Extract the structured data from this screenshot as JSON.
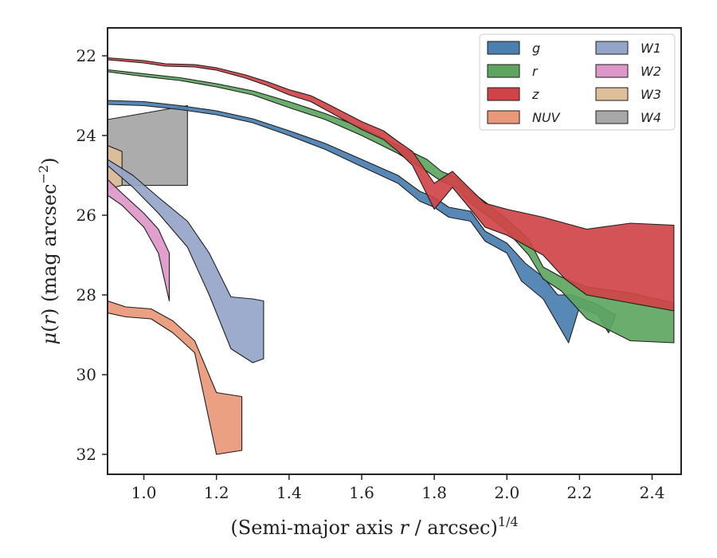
{
  "chart_data": {
    "type": "area",
    "xlabel": "(Semi-major axis r / arcsec)^1/4",
    "xlabel_parts": {
      "prefix": "(Semi-major axis ",
      "var": "r",
      "suffix": " / arcsec)",
      "exponent": "1/4"
    },
    "ylabel": "μ(r) (mag arcsec^−2)",
    "ylabel_parts": {
      "mu": "μ",
      "open": "(",
      "var": "r",
      "close": ")",
      "rest": " (mag arcsec",
      "exponent": "−2",
      "end": ")"
    },
    "xlim": [
      0.9,
      2.48
    ],
    "ylim": [
      32.5,
      21.3
    ],
    "y_inverted": true,
    "xticks": [
      "1.0",
      "1.2",
      "1.4",
      "1.6",
      "1.8",
      "2.0",
      "2.2",
      "2.4"
    ],
    "xtick_values": [
      1.0,
      1.2,
      1.4,
      1.6,
      1.8,
      2.0,
      2.2,
      2.4
    ],
    "yticks": [
      "22",
      "24",
      "26",
      "28",
      "30",
      "32"
    ],
    "ytick_values": [
      22,
      24,
      26,
      28,
      30,
      32
    ],
    "grid": false,
    "legend": {
      "placement": "top-right",
      "columns": 2
    },
    "series": [
      {
        "name": "W4",
        "color": "#a8a8a8",
        "upper": [
          [
            0.9,
            23.6
          ],
          [
            1.12,
            23.25
          ]
        ],
        "lower": [
          [
            0.9,
            25.25
          ],
          [
            1.12,
            25.25
          ]
        ]
      },
      {
        "name": "W3",
        "color": "#ddbf9a",
        "upper": [
          [
            0.9,
            24.25
          ],
          [
            0.94,
            24.4
          ]
        ],
        "lower": [
          [
            0.9,
            25.35
          ],
          [
            0.94,
            25.25
          ]
        ]
      },
      {
        "name": "W2",
        "color": "#dd97c8",
        "upper": [
          [
            0.9,
            25.1
          ],
          [
            0.94,
            25.45
          ],
          [
            1.0,
            25.95
          ],
          [
            1.04,
            26.35
          ],
          [
            1.07,
            26.95
          ]
        ],
        "lower": [
          [
            0.9,
            25.5
          ],
          [
            0.94,
            25.75
          ],
          [
            1.0,
            26.3
          ],
          [
            1.04,
            26.95
          ],
          [
            1.07,
            28.15
          ]
        ]
      },
      {
        "name": "W1",
        "color": "#95a5c9",
        "upper": [
          [
            0.9,
            24.6
          ],
          [
            0.97,
            25.0
          ],
          [
            1.04,
            25.55
          ],
          [
            1.12,
            26.15
          ],
          [
            1.18,
            26.95
          ],
          [
            1.24,
            28.05
          ],
          [
            1.3,
            28.1
          ],
          [
            1.33,
            28.15
          ]
        ],
        "lower": [
          [
            0.9,
            24.75
          ],
          [
            0.97,
            25.3
          ],
          [
            1.04,
            25.95
          ],
          [
            1.12,
            26.8
          ],
          [
            1.18,
            28.0
          ],
          [
            1.24,
            29.35
          ],
          [
            1.3,
            29.7
          ],
          [
            1.33,
            29.6
          ]
        ]
      },
      {
        "name": "NUV",
        "color": "#e9987a",
        "upper": [
          [
            0.9,
            28.15
          ],
          [
            0.95,
            28.3
          ],
          [
            1.02,
            28.35
          ],
          [
            1.08,
            28.65
          ],
          [
            1.14,
            29.15
          ],
          [
            1.2,
            30.45
          ],
          [
            1.27,
            30.55
          ]
        ],
        "lower": [
          [
            0.9,
            28.45
          ],
          [
            0.95,
            28.55
          ],
          [
            1.02,
            28.6
          ],
          [
            1.08,
            28.95
          ],
          [
            1.14,
            29.45
          ],
          [
            1.2,
            32.0
          ],
          [
            1.27,
            31.9
          ]
        ]
      },
      {
        "name": "g",
        "color": "#4a7fb0",
        "upper": [
          [
            0.9,
            23.12
          ],
          [
            1.0,
            23.15
          ],
          [
            1.1,
            23.25
          ],
          [
            1.2,
            23.38
          ],
          [
            1.3,
            23.58
          ],
          [
            1.4,
            23.88
          ],
          [
            1.5,
            24.2
          ],
          [
            1.6,
            24.6
          ],
          [
            1.7,
            25.0
          ],
          [
            1.76,
            25.4
          ],
          [
            1.8,
            25.55
          ],
          [
            1.84,
            25.8
          ],
          [
            1.9,
            25.9
          ],
          [
            1.94,
            26.4
          ],
          [
            2.0,
            26.7
          ],
          [
            2.05,
            27.2
          ],
          [
            2.1,
            27.55
          ],
          [
            2.14,
            28.0
          ],
          [
            2.18,
            28.0
          ],
          [
            2.24,
            28.2
          ],
          [
            2.3,
            28.5
          ]
        ],
        "lower": [
          [
            0.9,
            23.22
          ],
          [
            1.0,
            23.25
          ],
          [
            1.1,
            23.35
          ],
          [
            1.2,
            23.48
          ],
          [
            1.3,
            23.68
          ],
          [
            1.4,
            24.0
          ],
          [
            1.5,
            24.35
          ],
          [
            1.6,
            24.78
          ],
          [
            1.7,
            25.2
          ],
          [
            1.76,
            25.65
          ],
          [
            1.8,
            25.8
          ],
          [
            1.84,
            26.05
          ],
          [
            1.9,
            26.15
          ],
          [
            1.94,
            26.65
          ],
          [
            2.0,
            26.95
          ],
          [
            2.04,
            27.65
          ],
          [
            2.1,
            28.1
          ],
          [
            2.17,
            29.2
          ],
          [
            2.2,
            28.3
          ],
          [
            2.25,
            28.5
          ],
          [
            2.28,
            28.95
          ]
        ]
      },
      {
        "name": "r",
        "color": "#5ea660",
        "upper": [
          [
            0.9,
            22.35
          ],
          [
            1.0,
            22.45
          ],
          [
            1.1,
            22.55
          ],
          [
            1.2,
            22.7
          ],
          [
            1.3,
            22.88
          ],
          [
            1.4,
            23.15
          ],
          [
            1.5,
            23.45
          ],
          [
            1.6,
            23.8
          ],
          [
            1.7,
            24.25
          ],
          [
            1.78,
            24.6
          ],
          [
            1.82,
            24.9
          ],
          [
            1.86,
            25.05
          ],
          [
            1.9,
            25.4
          ],
          [
            1.96,
            25.8
          ],
          [
            2.0,
            26.1
          ],
          [
            2.06,
            26.6
          ],
          [
            2.1,
            27.3
          ],
          [
            2.15,
            27.55
          ],
          [
            2.22,
            27.8
          ],
          [
            2.34,
            27.95
          ],
          [
            2.46,
            28.2
          ]
        ],
        "lower": [
          [
            0.9,
            22.4
          ],
          [
            1.0,
            22.52
          ],
          [
            1.1,
            22.62
          ],
          [
            1.2,
            22.78
          ],
          [
            1.3,
            22.98
          ],
          [
            1.4,
            23.3
          ],
          [
            1.5,
            23.6
          ],
          [
            1.6,
            24.0
          ],
          [
            1.7,
            24.45
          ],
          [
            1.78,
            24.9
          ],
          [
            1.82,
            25.15
          ],
          [
            1.86,
            25.3
          ],
          [
            1.9,
            25.7
          ],
          [
            1.96,
            26.1
          ],
          [
            2.0,
            26.4
          ],
          [
            2.06,
            27.0
          ],
          [
            2.1,
            27.6
          ],
          [
            2.15,
            27.9
          ],
          [
            2.22,
            28.6
          ],
          [
            2.34,
            29.15
          ],
          [
            2.46,
            29.2
          ]
        ]
      },
      {
        "name": "z",
        "color": "#d04448",
        "upper": [
          [
            0.9,
            22.05
          ],
          [
            1.0,
            22.12
          ],
          [
            1.06,
            22.2
          ],
          [
            1.14,
            22.22
          ],
          [
            1.2,
            22.3
          ],
          [
            1.28,
            22.48
          ],
          [
            1.34,
            22.65
          ],
          [
            1.4,
            22.85
          ],
          [
            1.46,
            23.0
          ],
          [
            1.5,
            23.18
          ],
          [
            1.6,
            23.65
          ],
          [
            1.66,
            23.88
          ],
          [
            1.7,
            24.15
          ],
          [
            1.74,
            24.4
          ],
          [
            1.8,
            25.2
          ],
          [
            1.85,
            24.9
          ],
          [
            1.9,
            25.35
          ],
          [
            1.94,
            25.7
          ],
          [
            2.0,
            25.85
          ],
          [
            2.1,
            26.05
          ],
          [
            2.22,
            26.35
          ],
          [
            2.34,
            26.2
          ],
          [
            2.46,
            26.25
          ]
        ],
        "lower": [
          [
            0.9,
            22.1
          ],
          [
            1.0,
            22.18
          ],
          [
            1.06,
            22.26
          ],
          [
            1.14,
            22.28
          ],
          [
            1.2,
            22.36
          ],
          [
            1.28,
            22.56
          ],
          [
            1.34,
            22.75
          ],
          [
            1.4,
            22.98
          ],
          [
            1.46,
            23.15
          ],
          [
            1.5,
            23.35
          ],
          [
            1.6,
            23.85
          ],
          [
            1.66,
            24.1
          ],
          [
            1.7,
            24.4
          ],
          [
            1.74,
            24.75
          ],
          [
            1.8,
            25.85
          ],
          [
            1.85,
            25.3
          ],
          [
            1.9,
            25.85
          ],
          [
            1.94,
            26.3
          ],
          [
            2.0,
            26.5
          ],
          [
            2.1,
            27.0
          ],
          [
            2.16,
            27.6
          ],
          [
            2.22,
            28.0
          ],
          [
            2.34,
            28.2
          ],
          [
            2.46,
            28.4
          ]
        ]
      }
    ]
  }
}
